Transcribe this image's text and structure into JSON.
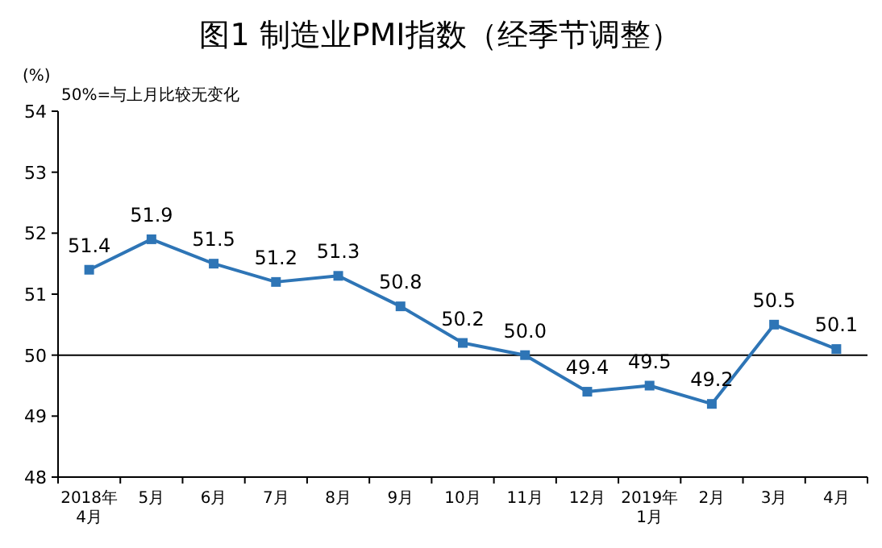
{
  "chart_data": {
    "type": "line",
    "title": "图1  制造业PMI指数（经季节调整）",
    "ylabel": "(%)",
    "annotations": [
      "50%=与上月比较无变化"
    ],
    "categories": [
      "2018年\n4月",
      "5月",
      "6月",
      "7月",
      "8月",
      "9月",
      "10月",
      "11月",
      "12月",
      "2019年\n1月",
      "2月",
      "3月",
      "4月"
    ],
    "series": [
      {
        "color": "#2e75b6",
        "values": [
          51.4,
          51.9,
          51.5,
          51.2,
          51.3,
          50.8,
          50.2,
          50.0,
          49.4,
          49.5,
          49.2,
          50.5,
          50.1
        ],
        "value_labels": [
          "51.4",
          "51.9",
          "51.5",
          "51.2",
          "51.3",
          "50.8",
          "50.2",
          "50.0",
          "49.4",
          "49.5",
          "49.2",
          "50.5",
          "50.1"
        ]
      }
    ],
    "ylim": [
      48,
      54
    ],
    "yticks": [
      48,
      49,
      50,
      51,
      52,
      53,
      54
    ],
    "ref_lines": [
      {
        "axis": "y",
        "value": 50,
        "color": "#000000"
      }
    ],
    "marker": "square"
  }
}
